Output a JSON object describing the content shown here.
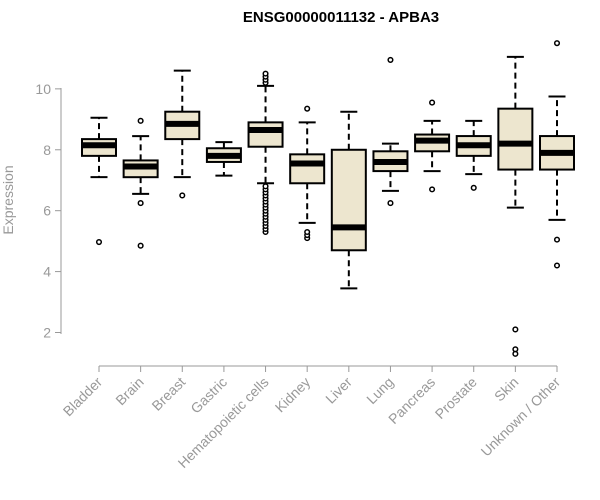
{
  "chart_data": {
    "type": "boxplot",
    "title": "ENSG00000011132 - APBA3",
    "xlabel": "",
    "ylabel": "Expression",
    "ylim": [
      0.9,
      11.9
    ],
    "yticks": [
      2,
      4,
      6,
      8,
      10
    ],
    "box_fill": "#ede6cf",
    "categories": [
      "Bladder",
      "Brain",
      "Breast",
      "Gastric",
      "Hematopoietic cells",
      "Kidney",
      "Liver",
      "Lung",
      "Pancreas",
      "Prostate",
      "Skin",
      "Unknown / Other"
    ],
    "boxes": [
      {
        "whisker_low": 7.1,
        "q1": 7.8,
        "median": 8.15,
        "q3": 8.35,
        "whisker_high": 9.05,
        "outliers": [
          4.97
        ]
      },
      {
        "whisker_low": 6.55,
        "q1": 7.1,
        "median": 7.45,
        "q3": 7.65,
        "whisker_high": 8.45,
        "outliers": [
          4.85,
          6.25,
          8.95
        ]
      },
      {
        "whisker_low": 7.1,
        "q1": 8.35,
        "median": 8.85,
        "q3": 9.25,
        "whisker_high": 10.6,
        "outliers": [
          6.5
        ]
      },
      {
        "whisker_low": 7.15,
        "q1": 7.6,
        "median": 7.8,
        "q3": 8.05,
        "whisker_high": 8.25,
        "outliers": []
      },
      {
        "whisker_low": 6.9,
        "q1": 8.1,
        "median": 8.65,
        "q3": 8.9,
        "whisker_high": 10.1,
        "outliers": [
          5.3,
          5.4,
          5.5,
          5.6,
          5.7,
          5.8,
          5.9,
          6.0,
          6.1,
          6.2,
          6.3,
          6.4,
          6.5,
          6.6,
          6.7,
          6.8,
          10.2,
          10.3,
          10.4,
          10.5
        ]
      },
      {
        "whisker_low": 5.6,
        "q1": 6.9,
        "median": 7.55,
        "q3": 7.85,
        "whisker_high": 8.9,
        "outliers": [
          5.1,
          5.2,
          5.3,
          9.35
        ]
      },
      {
        "whisker_low": 3.45,
        "q1": 4.7,
        "median": 5.45,
        "q3": 8.0,
        "whisker_high": 9.25,
        "outliers": []
      },
      {
        "whisker_low": 6.65,
        "q1": 7.3,
        "median": 7.6,
        "q3": 7.95,
        "whisker_high": 8.2,
        "outliers": [
          6.25,
          10.95
        ]
      },
      {
        "whisker_low": 7.3,
        "q1": 7.95,
        "median": 8.3,
        "q3": 8.5,
        "whisker_high": 8.95,
        "outliers": [
          6.7,
          9.55
        ]
      },
      {
        "whisker_low": 7.2,
        "q1": 7.8,
        "median": 8.15,
        "q3": 8.45,
        "whisker_high": 8.95,
        "outliers": [
          6.75
        ]
      },
      {
        "whisker_low": 6.1,
        "q1": 7.35,
        "median": 8.2,
        "q3": 9.35,
        "whisker_high": 11.05,
        "outliers": [
          1.3,
          1.45,
          2.1
        ]
      },
      {
        "whisker_low": 5.7,
        "q1": 7.35,
        "median": 7.9,
        "q3": 8.45,
        "whisker_high": 9.75,
        "outliers": [
          4.2,
          5.05,
          11.5
        ]
      }
    ]
  }
}
